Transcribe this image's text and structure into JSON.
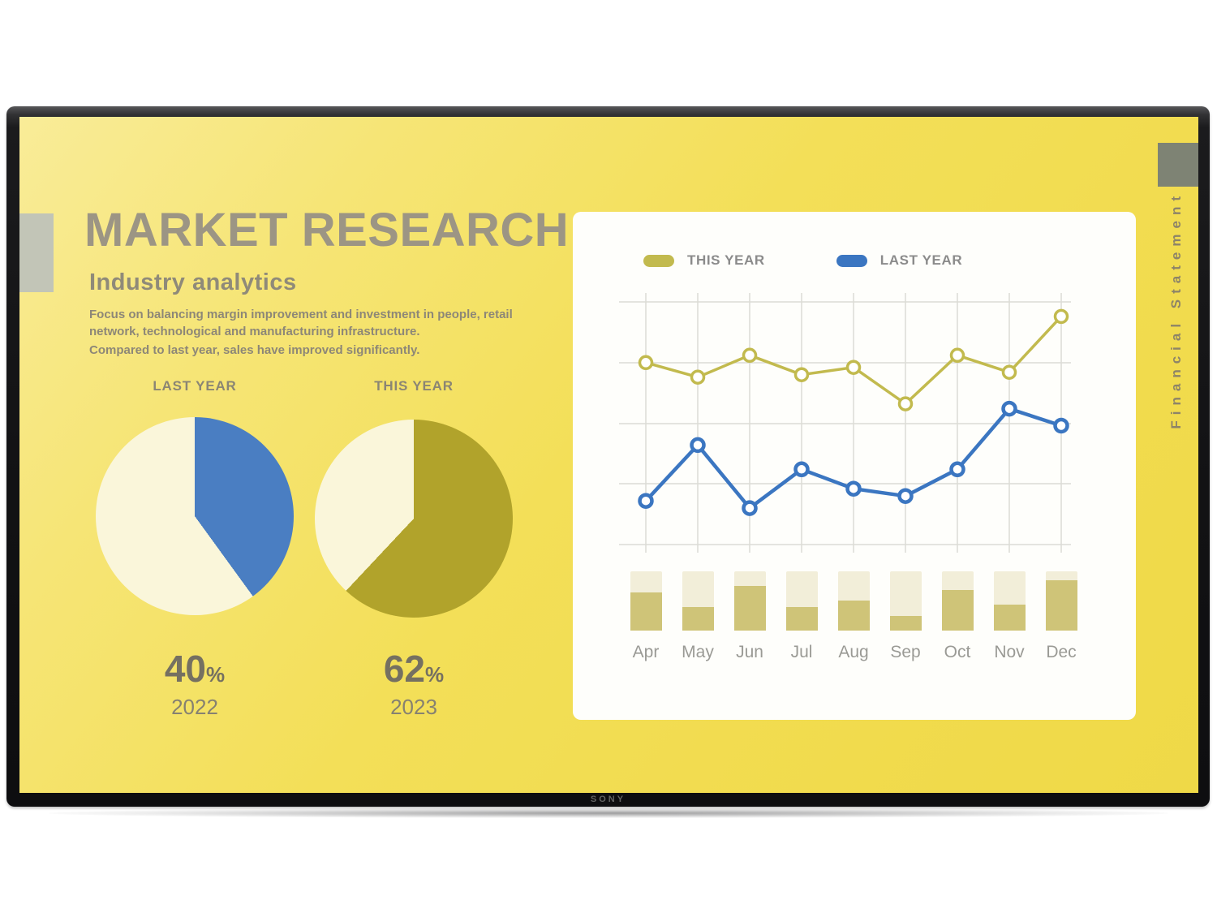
{
  "screen": {
    "title": "MARKET RESEARCH",
    "subtitle": "Industry analytics",
    "paragraph1": "Focus on balancing margin improvement and investment in people, retail network, technological and manufacturing infrastructure.",
    "paragraph2": "Compared to last year, sales have improved significantly.",
    "vertical_label": "Financial Statement",
    "brand": "SONY"
  },
  "legend": {
    "this_year": "THIS YEAR",
    "last_year": "LAST YEAR"
  },
  "colors": {
    "screen_yellow": "#f3df58",
    "cream": "#faf6da",
    "blue": "#4a7ec2",
    "olive": "#b1a32b",
    "line_olive": "#c2ba4e",
    "line_blue": "#3b76c1",
    "bar_fill": "#cfc478",
    "bar_track": "#f2eed9",
    "grid": "#dcdcd6"
  },
  "chart_data": [
    {
      "type": "pie",
      "title": "LAST YEAR",
      "year": "2022",
      "value_label": "40",
      "unit": "%",
      "values": [
        40,
        60
      ],
      "colors": [
        "#4a7ec2",
        "#faf6da"
      ],
      "note": "blue slice starts at 12 o'clock, clockwise"
    },
    {
      "type": "pie",
      "title": "THIS YEAR",
      "year": "2023",
      "value_label": "62",
      "unit": "%",
      "values": [
        62,
        38
      ],
      "colors": [
        "#b1a32b",
        "#faf6da"
      ],
      "note": "olive slice starts at 12 o'clock, clockwise"
    },
    {
      "type": "line",
      "x": [
        "Apr",
        "May",
        "Jun",
        "Jul",
        "Aug",
        "Sep",
        "Oct",
        "Nov",
        "Dec"
      ],
      "series": [
        {
          "name": "THIS YEAR",
          "color": "#c2ba4e",
          "stroke": 3.5,
          "values": [
            75,
            69,
            78,
            70,
            73,
            58,
            78,
            71,
            94
          ]
        },
        {
          "name": "LAST YEAR",
          "color": "#3b76c1",
          "stroke": 4.5,
          "values": [
            18,
            41,
            15,
            31,
            23,
            20,
            31,
            56,
            49
          ]
        }
      ],
      "ylim": [
        0,
        100
      ],
      "grid": true,
      "legend_position": "top",
      "marker": "open-circle"
    },
    {
      "type": "bar",
      "categories": [
        "Apr",
        "May",
        "Jun",
        "Jul",
        "Aug",
        "Sep",
        "Oct",
        "Nov",
        "Dec"
      ],
      "values": [
        64,
        40,
        75,
        40,
        50,
        25,
        68,
        44,
        85
      ],
      "ylim": [
        0,
        100
      ],
      "note": "khaki fill inside full-height cream track bars"
    }
  ]
}
